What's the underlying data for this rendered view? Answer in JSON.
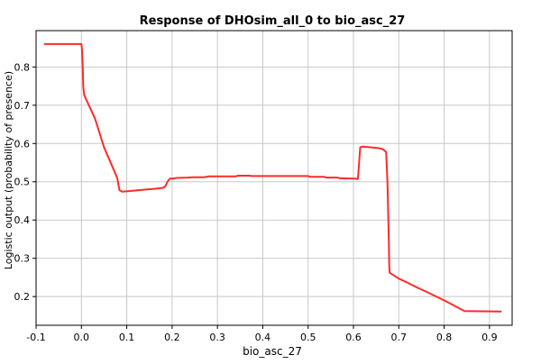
{
  "chart_data": {
    "type": "line",
    "title": "Response of DHOsim_all_0 to bio_asc_27",
    "xlabel": "bio_asc_27",
    "ylabel": "Logistic output (probability of presence)",
    "xlim": [
      -0.1,
      0.95
    ],
    "ylim": [
      0.125,
      0.895
    ],
    "x_ticks": [
      -0.1,
      0.0,
      0.1,
      0.2,
      0.3,
      0.4,
      0.5,
      0.6,
      0.7,
      0.8,
      0.9
    ],
    "x_tick_labels": [
      "-0.1",
      "0.0",
      "0.1",
      "0.2",
      "0.3",
      "0.4",
      "0.5",
      "0.6",
      "0.7",
      "0.8",
      "0.9"
    ],
    "y_ticks": [
      0.2,
      0.3,
      0.4,
      0.5,
      0.6,
      0.7,
      0.8
    ],
    "y_tick_labels": [
      "0.2",
      "0.3",
      "0.4",
      "0.5",
      "0.6",
      "0.7",
      "0.8"
    ],
    "grid": true,
    "line_color": "#ff2a2a",
    "grid_color": "#c8c8c8",
    "series": [
      {
        "x": [
          -0.081,
          0.0,
          0.001,
          0.003,
          0.004,
          0.006,
          0.03,
          0.05,
          0.079,
          0.084,
          0.09,
          0.11,
          0.125,
          0.145,
          0.165,
          0.18,
          0.185,
          0.19,
          0.195,
          0.2,
          0.21,
          0.235,
          0.245,
          0.27,
          0.28,
          0.34,
          0.345,
          0.37,
          0.375,
          0.5,
          0.505,
          0.535,
          0.54,
          0.565,
          0.57,
          0.605,
          0.608,
          0.61,
          0.615,
          0.62,
          0.63,
          0.655,
          0.665,
          0.672,
          0.675,
          0.678,
          0.679,
          0.68,
          0.7,
          0.72,
          0.74,
          0.76,
          0.8,
          0.845,
          0.925
        ],
        "y": [
          0.86,
          0.86,
          0.85,
          0.8,
          0.75,
          0.727,
          0.665,
          0.59,
          0.51,
          0.478,
          0.474,
          0.476,
          0.478,
          0.48,
          0.482,
          0.484,
          0.488,
          0.5,
          0.508,
          0.508,
          0.51,
          0.511,
          0.512,
          0.512,
          0.514,
          0.514,
          0.516,
          0.516,
          0.515,
          0.515,
          0.513,
          0.513,
          0.511,
          0.511,
          0.509,
          0.508,
          0.507,
          0.508,
          0.59,
          0.592,
          0.591,
          0.588,
          0.585,
          0.578,
          0.5,
          0.35,
          0.28,
          0.262,
          0.247,
          0.236,
          0.224,
          0.213,
          0.19,
          0.162,
          0.161
        ]
      }
    ]
  }
}
